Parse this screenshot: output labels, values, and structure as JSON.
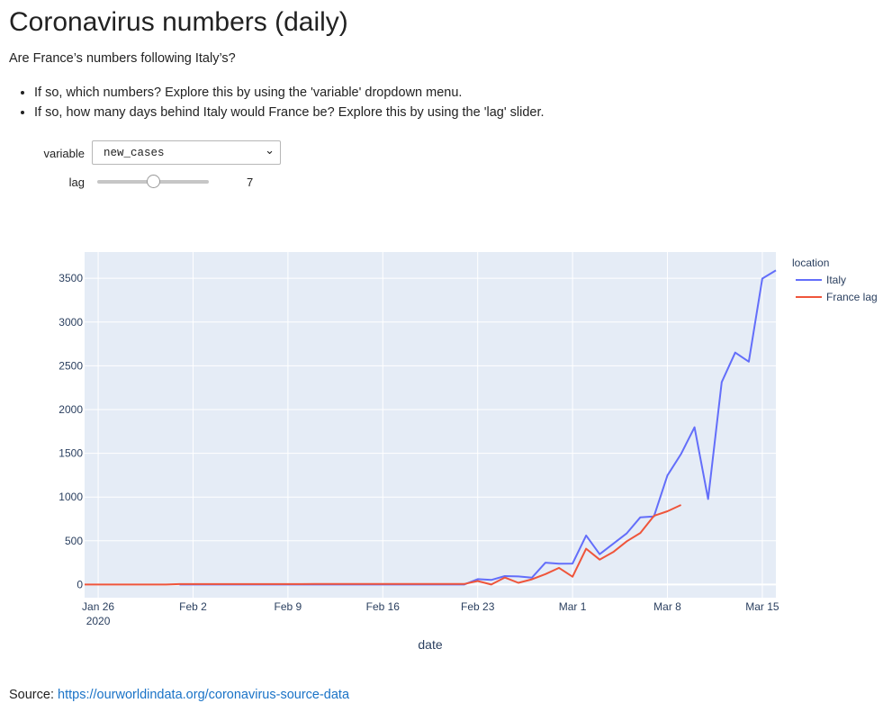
{
  "page": {
    "title": "Coronavirus numbers (daily)",
    "subtitle": "Are France’s numbers following Italy’s?",
    "bullets": [
      "If so, which numbers? Explore this by using the 'variable' dropdown menu.",
      "If so, how many days behind Italy would France be? Explore this by using the 'lag' slider."
    ],
    "source_label": "Source:",
    "source_link": "https://ourworldindata.org/coronavirus-source-data"
  },
  "controls": {
    "variable_label": "variable",
    "variable_value": "new_cases",
    "lag_label": "lag",
    "lag_value": 7,
    "lag_min": 0,
    "lag_max": 14
  },
  "colors": {
    "italy": "#636efa",
    "france_lag": "#ef553b",
    "plot_bg": "#e5ecf6",
    "link": "#1a73c7"
  },
  "chart_data": {
    "type": "line",
    "xlabel": "date",
    "ylabel": "",
    "legend_title": "location",
    "legend_position": "top-right",
    "grid": true,
    "x_start": "2020-01-25",
    "x_end": "2020-03-16",
    "ylim": [
      -150,
      3800
    ],
    "x_ticks": [
      "Jan 26",
      "Feb 2",
      "Feb 9",
      "Feb 16",
      "Feb 23",
      "Mar 1",
      "Mar 8",
      "Mar 15"
    ],
    "x_tick_dates": [
      "2020-01-26",
      "2020-02-02",
      "2020-02-09",
      "2020-02-16",
      "2020-02-23",
      "2020-03-01",
      "2020-03-08",
      "2020-03-15"
    ],
    "x_tick_sublabel": "2020",
    "y_ticks": [
      0,
      500,
      1000,
      1500,
      2000,
      2500,
      3000,
      3500
    ],
    "series": [
      {
        "name": "Italy",
        "color": "#636efa",
        "points": [
          [
            "2020-02-01",
            0
          ],
          [
            "2020-02-02",
            0
          ],
          [
            "2020-02-03",
            0
          ],
          [
            "2020-02-04",
            0
          ],
          [
            "2020-02-05",
            0
          ],
          [
            "2020-02-06",
            0
          ],
          [
            "2020-02-07",
            0
          ],
          [
            "2020-02-08",
            0
          ],
          [
            "2020-02-09",
            0
          ],
          [
            "2020-02-10",
            0
          ],
          [
            "2020-02-11",
            0
          ],
          [
            "2020-02-12",
            0
          ],
          [
            "2020-02-13",
            0
          ],
          [
            "2020-02-14",
            0
          ],
          [
            "2020-02-15",
            0
          ],
          [
            "2020-02-16",
            0
          ],
          [
            "2020-02-17",
            0
          ],
          [
            "2020-02-18",
            0
          ],
          [
            "2020-02-19",
            0
          ],
          [
            "2020-02-20",
            0
          ],
          [
            "2020-02-21",
            0
          ],
          [
            "2020-02-22",
            0
          ],
          [
            "2020-02-23",
            62
          ],
          [
            "2020-02-24",
            53
          ],
          [
            "2020-02-25",
            97
          ],
          [
            "2020-02-26",
            93
          ],
          [
            "2020-02-27",
            78
          ],
          [
            "2020-02-28",
            250
          ],
          [
            "2020-02-29",
            238
          ],
          [
            "2020-03-01",
            240
          ],
          [
            "2020-03-02",
            561
          ],
          [
            "2020-03-03",
            347
          ],
          [
            "2020-03-04",
            466
          ],
          [
            "2020-03-05",
            587
          ],
          [
            "2020-03-06",
            769
          ],
          [
            "2020-03-07",
            778
          ],
          [
            "2020-03-08",
            1247
          ],
          [
            "2020-03-09",
            1492
          ],
          [
            "2020-03-10",
            1797
          ],
          [
            "2020-03-11",
            977
          ],
          [
            "2020-03-12",
            2313
          ],
          [
            "2020-03-13",
            2651
          ],
          [
            "2020-03-14",
            2547
          ],
          [
            "2020-03-15",
            3497
          ],
          [
            "2020-03-16",
            3590
          ]
        ]
      },
      {
        "name": "France lag",
        "color": "#ef553b",
        "points": [
          [
            "2020-01-25",
            0
          ],
          [
            "2020-01-26",
            0
          ],
          [
            "2020-01-27",
            0
          ],
          [
            "2020-01-28",
            0
          ],
          [
            "2020-01-29",
            0
          ],
          [
            "2020-01-30",
            0
          ],
          [
            "2020-01-31",
            0
          ],
          [
            "2020-02-01",
            5
          ],
          [
            "2020-02-02",
            5
          ],
          [
            "2020-02-03",
            5
          ],
          [
            "2020-02-04",
            5
          ],
          [
            "2020-02-05",
            5
          ],
          [
            "2020-02-06",
            5
          ],
          [
            "2020-02-07",
            5
          ],
          [
            "2020-02-08",
            5
          ],
          [
            "2020-02-09",
            5
          ],
          [
            "2020-02-10",
            5
          ],
          [
            "2020-02-11",
            6
          ],
          [
            "2020-02-12",
            6
          ],
          [
            "2020-02-13",
            6
          ],
          [
            "2020-02-14",
            6
          ],
          [
            "2020-02-15",
            6
          ],
          [
            "2020-02-16",
            6
          ],
          [
            "2020-02-17",
            6
          ],
          [
            "2020-02-18",
            6
          ],
          [
            "2020-02-19",
            6
          ],
          [
            "2020-02-20",
            6
          ],
          [
            "2020-02-21",
            6
          ],
          [
            "2020-02-22",
            6
          ],
          [
            "2020-02-23",
            40
          ],
          [
            "2020-02-24",
            0
          ],
          [
            "2020-02-25",
            80
          ],
          [
            "2020-02-26",
            20
          ],
          [
            "2020-02-27",
            60
          ],
          [
            "2020-02-28",
            120
          ],
          [
            "2020-02-29",
            190
          ],
          [
            "2020-03-01",
            90
          ],
          [
            "2020-03-02",
            410
          ],
          [
            "2020-03-03",
            285
          ],
          [
            "2020-03-04",
            372
          ],
          [
            "2020-03-05",
            495
          ],
          [
            "2020-03-06",
            590
          ],
          [
            "2020-03-07",
            785
          ],
          [
            "2020-03-08",
            838
          ],
          [
            "2020-03-09",
            910
          ]
        ]
      }
    ]
  }
}
